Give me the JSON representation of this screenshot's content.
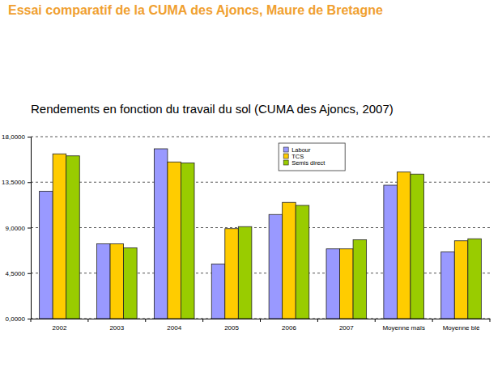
{
  "header": {
    "title": "Essai comparatif de la CUMA des Ajoncs, Maure de Bretagne"
  },
  "chart_data": {
    "type": "bar",
    "title": "Rendements en fonction du travail du sol (CUMA des Ajoncs, 2007)",
    "categories": [
      "2002",
      "2003",
      "2004",
      "2005",
      "2006",
      "2007",
      "Moyenne maïs",
      "Moyenne blé"
    ],
    "series": [
      {
        "name": "Labour",
        "color": "#9999ff",
        "values": [
          12.6,
          7.4,
          16.8,
          5.4,
          10.3,
          6.9,
          13.2,
          6.6
        ]
      },
      {
        "name": "TCS",
        "color": "#ffcc00",
        "values": [
          16.3,
          7.4,
          15.5,
          8.9,
          11.5,
          6.9,
          14.5,
          7.7
        ]
      },
      {
        "name": "Semis direct",
        "color": "#99cc00",
        "values": [
          16.1,
          7.0,
          15.4,
          9.1,
          11.2,
          7.8,
          14.3,
          7.9
        ]
      }
    ],
    "ylim": [
      0,
      18
    ],
    "yticks": [
      {
        "value": 0,
        "label": "0,0000"
      },
      {
        "value": 4.5,
        "label": "4,5000"
      },
      {
        "value": 9,
        "label": "9,0000"
      },
      {
        "value": 13.5,
        "label": "13,5000"
      },
      {
        "value": 18,
        "label": "18,0000"
      }
    ],
    "grid": true,
    "legend": "top-right"
  }
}
